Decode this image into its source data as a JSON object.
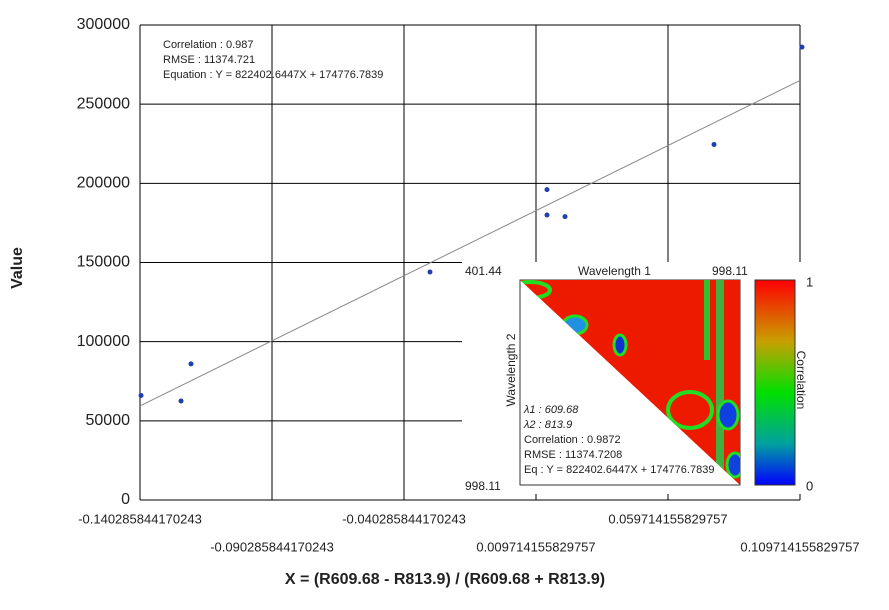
{
  "chart_data": {
    "type": "scatter",
    "x_label": "X = (R609.68 - R813.9) / (R609.68 + R813.9)",
    "y_label": "Value",
    "annotations": [
      "Correlation : 0.987",
      "RMSE : 11374.721",
      "Equation : Y = 822402.6447X + 174776.7839"
    ],
    "x": [
      -0.1399,
      -0.12475,
      -0.12097,
      -0.03044,
      0.01388,
      0.01388,
      0.0207,
      0.07714,
      0.11047
    ],
    "values": [
      66000,
      62500,
      86000,
      144000,
      196000,
      180000,
      179000,
      224500,
      286000
    ],
    "color": "#1f3fb0",
    "trendline": {
      "slope": 822402.6447,
      "intercept": 174776.7839,
      "color": "#888888"
    },
    "xlim": [
      -0.140285844170243,
      0.109714155829757
    ],
    "xticks": [
      -0.140285844170243,
      -0.090285844170243,
      -0.040285844170243,
      0.009714155829757,
      0.059714155829757,
      0.109714155829757
    ],
    "ylim": [
      0,
      300000
    ],
    "yticks": [
      0,
      50000,
      100000,
      150000,
      200000,
      250000,
      300000
    ],
    "grid": true
  },
  "inset": {
    "x_start": "401.44",
    "x_title": "Wavelength 1",
    "x_end": "998.11",
    "y_title": "Wavelength 2",
    "y_end": "998.11",
    "colorbar_title": "Correlation",
    "colorbar_max": "1",
    "colorbar_min": "0",
    "info": [
      "λ1 : 609.68",
      "λ2 : 813.9",
      "Correlation : 0.9872",
      "RMSE : 11374.7208",
      "Eq : Y = 822402.6447X + 174776.7839"
    ]
  }
}
